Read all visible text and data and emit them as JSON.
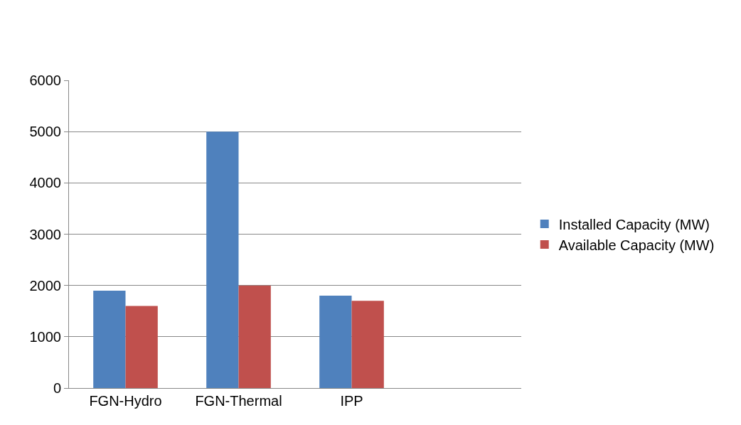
{
  "chart_data": {
    "type": "bar",
    "categories": [
      "FGN-Hydro",
      "FGN-Thermal",
      "IPP",
      null
    ],
    "series": [
      {
        "name": "Installed Capacity (MW)",
        "color": "#4f81bd",
        "values": [
          1900,
          5000,
          1800,
          null
        ]
      },
      {
        "name": "Available Capacity (MW)",
        "color": "#c0504d",
        "values": [
          1600,
          2000,
          1700,
          null
        ]
      }
    ],
    "ylim": [
      0,
      6000
    ],
    "yticks": [
      0,
      1000,
      2000,
      3000,
      4000,
      5000,
      6000
    ],
    "grid": "y",
    "legend": "right"
  }
}
